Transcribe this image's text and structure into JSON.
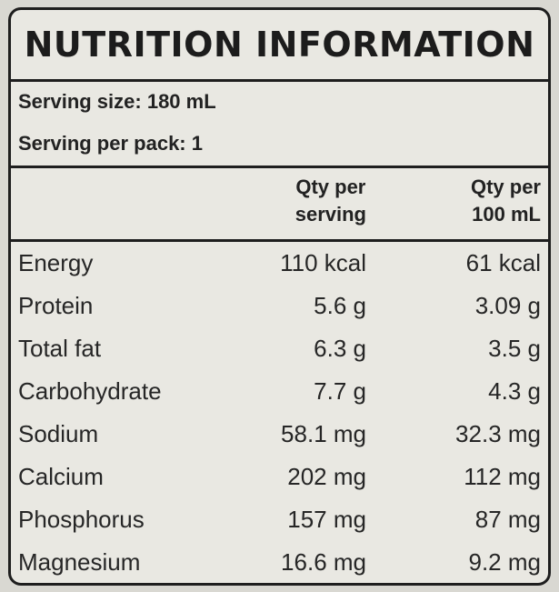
{
  "title": "NUTRITION INFORMATION",
  "serving": {
    "size": "Serving size: 180 mL",
    "per_pack": "Serving per pack: 1"
  },
  "columns": {
    "per_serving_line1": "Qty per",
    "per_serving_line2": "serving",
    "per_100_line1": "Qty per",
    "per_100_line2": "100 mL"
  },
  "rows": [
    {
      "label": "Energy",
      "per_serving": "110 kcal",
      "per_100ml": "61 kcal"
    },
    {
      "label": "Protein",
      "per_serving": "5.6 g",
      "per_100ml": "3.09 g"
    },
    {
      "label": "Total fat",
      "per_serving": "6.3 g",
      "per_100ml": "3.5 g"
    },
    {
      "label": "Carbohydrate",
      "per_serving": "7.7 g",
      "per_100ml": "4.3 g"
    },
    {
      "label": "Sodium",
      "per_serving": "58.1 mg",
      "per_100ml": "32.3 mg"
    },
    {
      "label": "Calcium",
      "per_serving": "202 mg",
      "per_100ml": "112 mg"
    },
    {
      "label": "Phosphorus",
      "per_serving": "157 mg",
      "per_100ml": "87 mg"
    },
    {
      "label": "Magnesium",
      "per_serving": "16.6 mg",
      "per_100ml": "9.2 mg"
    }
  ]
}
